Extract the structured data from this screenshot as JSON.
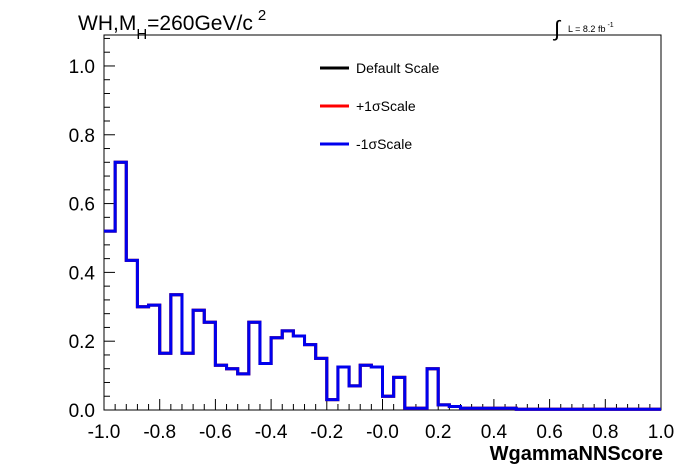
{
  "chart_data": {
    "type": "histogram-step",
    "title": {
      "prefix": "WH,M",
      "subscript": "H",
      "value": "=260GeV/c",
      "superscript": "2"
    },
    "lumi": {
      "integral": "∫",
      "text": "L = 8.2 fb",
      "superscript": "-1"
    },
    "xlabel": "WgammaNNScore",
    "ylabel": "",
    "xlim": [
      -1.0,
      1.0
    ],
    "ylim": [
      0.0,
      1.09
    ],
    "x_ticks": [
      "-1.0",
      "-0.8",
      "-0.6",
      "-0.4",
      "-0.2",
      "-0.0",
      "0.2",
      "0.4",
      "0.6",
      "0.8",
      "1.0"
    ],
    "y_ticks": [
      "0.0",
      "0.2",
      "0.4",
      "0.6",
      "0.8",
      "1.0"
    ],
    "bin_edges_start": -1.0,
    "bin_width": 0.04,
    "legend_position": "top-center",
    "series": [
      {
        "name": "Default Scale",
        "color": "#000000",
        "values": [
          0.52,
          0.72,
          0.435,
          0.3,
          0.305,
          0.165,
          0.335,
          0.165,
          0.29,
          0.255,
          0.13,
          0.12,
          0.105,
          0.255,
          0.135,
          0.21,
          0.23,
          0.215,
          0.19,
          0.15,
          0.03,
          0.125,
          0.07,
          0.13,
          0.125,
          0.04,
          0.095,
          0.005,
          0.005,
          0.12,
          0.015,
          0.01,
          0.005,
          0.005,
          0.005,
          0.005,
          0.005,
          0.002,
          0.002,
          0.002,
          0.002,
          0.002,
          0.002,
          0.002,
          0.002,
          0.002,
          0.002,
          0.002,
          0.002,
          0.002
        ]
      },
      {
        "name": "+1σScale",
        "color": "#ff0000",
        "values": [
          0.52,
          0.72,
          0.435,
          0.3,
          0.305,
          0.165,
          0.335,
          0.165,
          0.29,
          0.255,
          0.13,
          0.12,
          0.105,
          0.255,
          0.135,
          0.21,
          0.23,
          0.215,
          0.19,
          0.15,
          0.03,
          0.125,
          0.07,
          0.13,
          0.125,
          0.04,
          0.095,
          0.005,
          0.005,
          0.12,
          0.015,
          0.01,
          0.005,
          0.005,
          0.005,
          0.005,
          0.005,
          0.002,
          0.002,
          0.002,
          0.002,
          0.002,
          0.002,
          0.002,
          0.002,
          0.002,
          0.002,
          0.002,
          0.002,
          0.002
        ]
      },
      {
        "name": "-1σScale",
        "color": "#0000ee",
        "values": [
          0.52,
          0.72,
          0.435,
          0.3,
          0.305,
          0.165,
          0.335,
          0.165,
          0.29,
          0.255,
          0.13,
          0.12,
          0.105,
          0.255,
          0.135,
          0.21,
          0.23,
          0.215,
          0.19,
          0.15,
          0.03,
          0.125,
          0.07,
          0.13,
          0.125,
          0.04,
          0.095,
          0.005,
          0.005,
          0.12,
          0.015,
          0.01,
          0.005,
          0.005,
          0.005,
          0.005,
          0.005,
          0.002,
          0.002,
          0.002,
          0.002,
          0.002,
          0.002,
          0.002,
          0.002,
          0.002,
          0.002,
          0.002,
          0.002,
          0.002
        ]
      }
    ]
  }
}
